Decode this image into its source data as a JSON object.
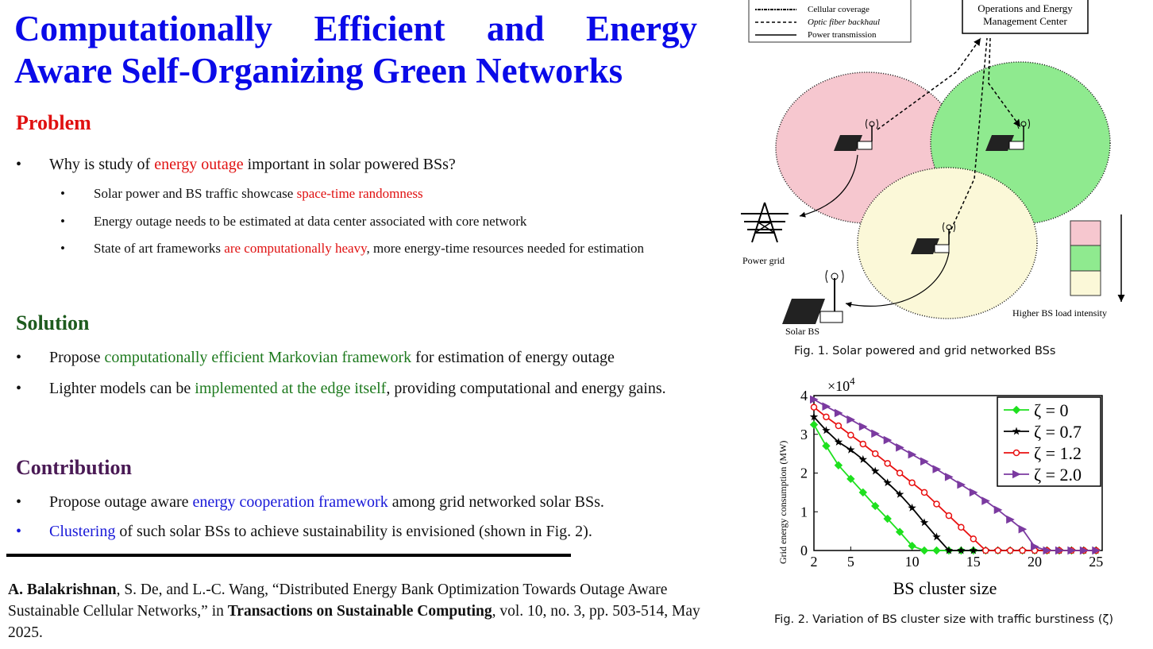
{
  "title": "Computationally Efficient and Energy Aware Self-Organizing Green Networks",
  "sections": {
    "problem": {
      "heading": "Problem",
      "bullet1": {
        "pre": "Why is study of ",
        "hl": "energy outage",
        "post": " important in solar powered BSs?"
      },
      "sub1": {
        "pre": "Solar power and BS traffic showcase ",
        "hl": "space-time randomness",
        "post": ""
      },
      "sub2": "Energy outage needs to be estimated at data center associated with core network",
      "sub3": {
        "pre": "State of art frameworks ",
        "hl": "are computationally heavy",
        "post": ", more energy-time resources needed for estimation"
      }
    },
    "solution": {
      "heading": "Solution",
      "bullet1": {
        "pre": "Propose ",
        "hl": "computationally efficient Markovian framework",
        "post": " for estimation of energy outage"
      },
      "bullet2": {
        "pre": "Lighter models can be ",
        "hl": "implemented at the edge itself",
        "post": ", providing computational and energy gains."
      }
    },
    "contribution": {
      "heading": "Contribution",
      "bullet1": {
        "pre": "Propose outage aware ",
        "hl": "energy cooperation framework",
        "post": " among grid networked solar BSs."
      },
      "bullet2": {
        "hl": "Clustering",
        "post": " of such solar BSs to achieve sustainability is envisioned (shown in Fig. 2)."
      }
    }
  },
  "reference": {
    "authors_bold": "A. Balakrishnan",
    "authors_rest": ", S. De, and L.-C. Wang, “Distributed Energy Bank Optimization Towards Outage Aware Sustainable Cellular Networks,” in ",
    "journal": "Transactions on Sustainable Computing",
    "details": ", vol. 10, no. 3, pp. 503-514, May 2025."
  },
  "bullet_char": "•",
  "fig1": {
    "legend": [
      "Cellular coverage",
      "Optic fiber backhaul",
      "Power transmission"
    ],
    "center_line1": "Operations and Energy",
    "center_line2": "Management Center",
    "power_grid": "Power grid",
    "solar_bs": "Solar BS",
    "load_label": "Higher BS load intensity",
    "caption": "Fig. 1. Solar powered and grid networked BSs",
    "colors": {
      "pink": "#f6c7cf",
      "green": "#8fea8f",
      "yellow": "#fbf8d8"
    }
  },
  "fig2": {
    "caption": "Fig. 2. Variation of BS cluster size with traffic burstiness (ζ)",
    "chart_data": {
      "type": "line",
      "xlabel": "BS cluster size",
      "ylabel": "Grid energy consumption (MW)",
      "y_multiplier": "×10",
      "y_multiplier_exp": "4",
      "xlim": [
        2,
        25.5
      ],
      "ylim": [
        0,
        4
      ],
      "xticks": [
        2,
        5,
        10,
        15,
        20,
        25
      ],
      "yticks": [
        0,
        1,
        2,
        3,
        4
      ],
      "legend_position": "top-right",
      "series": [
        {
          "name": "ζ = 0",
          "color": "#1ee01e",
          "marker": "diamond",
          "points": [
            [
              2,
              3.25
            ],
            [
              3,
              2.7
            ],
            [
              4,
              2.2
            ],
            [
              5,
              1.85
            ],
            [
              6,
              1.5
            ],
            [
              7,
              1.15
            ],
            [
              8,
              0.82
            ],
            [
              9,
              0.48
            ],
            [
              10,
              0.12
            ],
            [
              11,
              0
            ],
            [
              12,
              0
            ],
            [
              13,
              0
            ],
            [
              14,
              0
            ],
            [
              15,
              0
            ],
            [
              16,
              0
            ],
            [
              17,
              0
            ],
            [
              18,
              0
            ],
            [
              19,
              0
            ],
            [
              20,
              0
            ],
            [
              21,
              0
            ],
            [
              22,
              0
            ],
            [
              23,
              0
            ],
            [
              24,
              0
            ],
            [
              25,
              0
            ]
          ]
        },
        {
          "name": "ζ = 0.7",
          "color": "#000000",
          "marker": "star",
          "points": [
            [
              2,
              3.45
            ],
            [
              3,
              3.1
            ],
            [
              4,
              2.8
            ],
            [
              5,
              2.6
            ],
            [
              6,
              2.35
            ],
            [
              7,
              2.05
            ],
            [
              8,
              1.75
            ],
            [
              9,
              1.45
            ],
            [
              10,
              1.1
            ],
            [
              11,
              0.72
            ],
            [
              12,
              0.35
            ],
            [
              13,
              0
            ],
            [
              14,
              0
            ],
            [
              15,
              0
            ],
            [
              16,
              0
            ],
            [
              17,
              0
            ],
            [
              18,
              0
            ],
            [
              19,
              0
            ],
            [
              20,
              0
            ],
            [
              21,
              0
            ],
            [
              22,
              0
            ],
            [
              23,
              0
            ],
            [
              24,
              0
            ],
            [
              25,
              0
            ]
          ]
        },
        {
          "name": "ζ = 1.2",
          "color": "#e81010",
          "marker": "circle",
          "points": [
            [
              2,
              3.7
            ],
            [
              3,
              3.45
            ],
            [
              4,
              3.22
            ],
            [
              5,
              2.98
            ],
            [
              6,
              2.75
            ],
            [
              7,
              2.5
            ],
            [
              8,
              2.25
            ],
            [
              9,
              2.0
            ],
            [
              10,
              1.75
            ],
            [
              11,
              1.5
            ],
            [
              12,
              1.2
            ],
            [
              13,
              0.9
            ],
            [
              14,
              0.6
            ],
            [
              15,
              0.3
            ],
            [
              16,
              0
            ],
            [
              17,
              0
            ],
            [
              18,
              0
            ],
            [
              19,
              0
            ],
            [
              20,
              0
            ],
            [
              21,
              0
            ],
            [
              22,
              0
            ],
            [
              23,
              0
            ],
            [
              24,
              0
            ],
            [
              25,
              0
            ]
          ]
        },
        {
          "name": "ζ = 2.0",
          "color": "#7b3aa0",
          "marker": "triangle",
          "points": [
            [
              2,
              3.9
            ],
            [
              3,
              3.72
            ],
            [
              4,
              3.55
            ],
            [
              5,
              3.38
            ],
            [
              6,
              3.2
            ],
            [
              7,
              3.02
            ],
            [
              8,
              2.85
            ],
            [
              9,
              2.66
            ],
            [
              10,
              2.48
            ],
            [
              11,
              2.3
            ],
            [
              12,
              2.1
            ],
            [
              13,
              1.9
            ],
            [
              14,
              1.7
            ],
            [
              15,
              1.5
            ],
            [
              16,
              1.28
            ],
            [
              17,
              1.05
            ],
            [
              18,
              0.8
            ],
            [
              19,
              0.55
            ],
            [
              20,
              0.1
            ],
            [
              21,
              0
            ],
            [
              22,
              0
            ],
            [
              23,
              0
            ],
            [
              24,
              0
            ],
            [
              25,
              0
            ]
          ]
        }
      ]
    }
  }
}
